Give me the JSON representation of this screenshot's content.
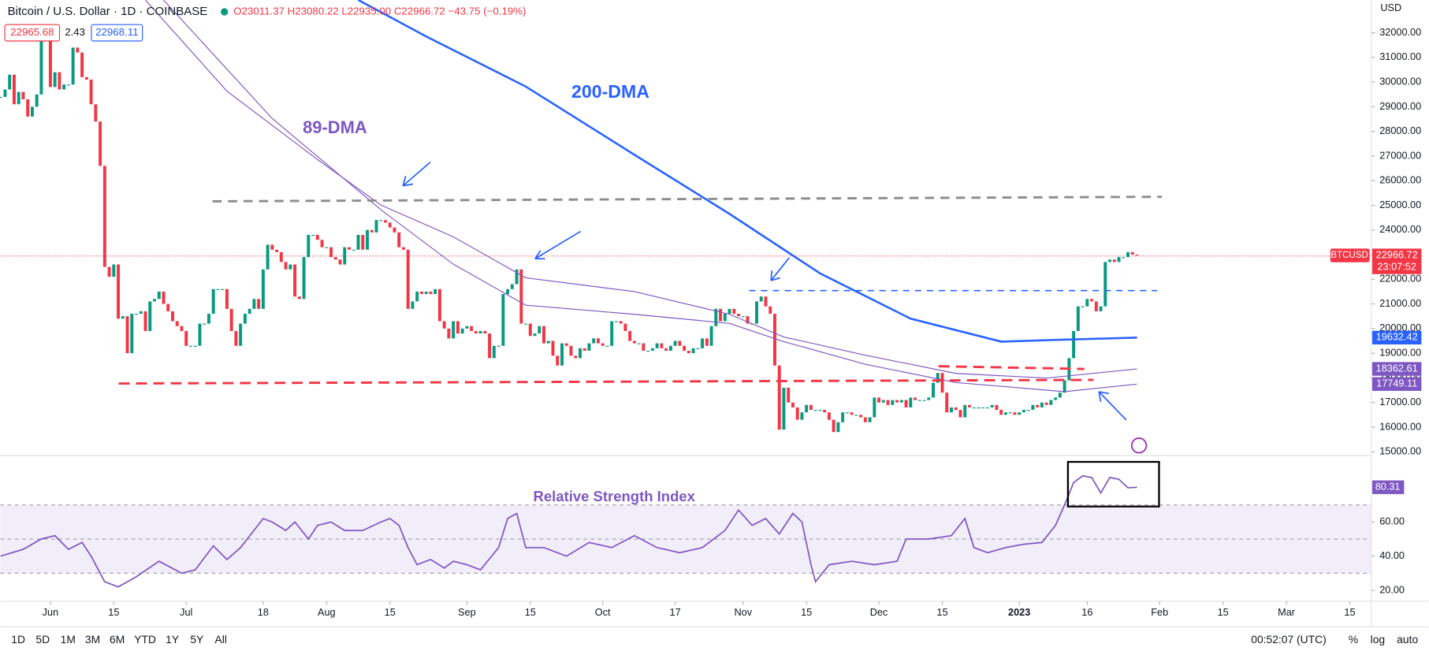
{
  "header": {
    "title": "Bitcoin / U.S. Dollar · 1D · COINBASE",
    "ohlc_text": "O23011.37 H23080.22 L22935.00 C22966.72 −43.75 (−0.19%)",
    "bid": "22965.68",
    "spread": "2.43",
    "ask": "22968.11",
    "currency": "USD"
  },
  "toolbar": {
    "ranges": [
      "1D",
      "5D",
      "1M",
      "3M",
      "6M",
      "YTD",
      "1Y",
      "5Y",
      "All"
    ],
    "time": "00:52:07 (UTC)",
    "options": [
      "%",
      "log",
      "auto"
    ]
  },
  "chart_data": [
    {
      "type": "candlestick",
      "symbol": "BTCUSD",
      "countdown": "23:07:52",
      "up_color": "#089981",
      "down_color": "#f23645",
      "annotations": [
        "200-DMA",
        "89-DMA"
      ],
      "ylim": [
        14850,
        33330
      ],
      "yticks": [
        {
          "value": 15000,
          "label": "15000.00"
        },
        {
          "value": 16000,
          "label": "16000.00"
        },
        {
          "value": 17000,
          "label": "17000.00"
        },
        {
          "value": 18000,
          "label": "18000.00"
        },
        {
          "value": 19000,
          "label": "19000.00"
        },
        {
          "value": 20000,
          "label": "20000.00"
        },
        {
          "value": 21000,
          "label": "21000.00"
        },
        {
          "value": 22000,
          "label": "22000.00"
        },
        {
          "value": 23000,
          "label": "23000.00"
        },
        {
          "value": 24000,
          "label": "24000.00"
        },
        {
          "value": 25000,
          "label": "25000.00"
        },
        {
          "value": 26000,
          "label": "26000.00"
        },
        {
          "value": 27000,
          "label": "27000.00"
        },
        {
          "value": 28000,
          "label": "28000.00"
        },
        {
          "value": 29000,
          "label": "29000.00"
        },
        {
          "value": 30000,
          "label": "30000.00"
        },
        {
          "value": 31000,
          "label": "31000.00"
        },
        {
          "value": 32000,
          "label": "32000.00"
        }
      ],
      "xticks": [
        {
          "value": 11,
          "label": "Jun"
        },
        {
          "value": 25,
          "label": "15"
        },
        {
          "value": 41,
          "label": "Jul"
        },
        {
          "value": 58,
          "label": "18"
        },
        {
          "value": 72,
          "label": "Aug"
        },
        {
          "value": 86,
          "label": "15"
        },
        {
          "value": 103,
          "label": "Sep"
        },
        {
          "value": 117,
          "label": "15"
        },
        {
          "value": 133,
          "label": "Oct"
        },
        {
          "value": 149,
          "label": "17"
        },
        {
          "value": 164,
          "label": "Nov"
        },
        {
          "value": 178,
          "label": "15"
        },
        {
          "value": 194,
          "label": "Dec"
        },
        {
          "value": 208,
          "label": "15"
        },
        {
          "value": 225,
          "label": "2023"
        },
        {
          "value": 240,
          "label": "16"
        },
        {
          "value": 256,
          "label": "Feb"
        },
        {
          "value": 270,
          "label": "15"
        },
        {
          "value": 284,
          "label": "Mar"
        },
        {
          "value": 298,
          "label": "15"
        }
      ],
      "close": [
        29400,
        29700,
        30300,
        29100,
        29600,
        29300,
        28600,
        29000,
        29500,
        31700,
        31800,
        29800,
        30400,
        29700,
        29900,
        29900,
        31400,
        31200,
        30200,
        30100,
        29100,
        28400,
        26600,
        22500,
        22100,
        22600,
        20400,
        20500,
        19000,
        20600,
        20600,
        20700,
        19900,
        21100,
        21200,
        21500,
        21000,
        20700,
        20300,
        20100,
        19900,
        19300,
        19300,
        19300,
        20200,
        20200,
        20600,
        21600,
        21600,
        21600,
        20800,
        19900,
        19300,
        20200,
        20600,
        20800,
        21200,
        20800,
        22400,
        23400,
        23200,
        23100,
        22700,
        22400,
        22600,
        21300,
        21200,
        22900,
        23800,
        23800,
        23600,
        23300,
        23300,
        22900,
        22800,
        22600,
        23300,
        23200,
        23200,
        23800,
        23200,
        24000,
        23900,
        24400,
        24400,
        24300,
        24100,
        23900,
        23300,
        23200,
        20800,
        21100,
        21500,
        21400,
        21500,
        21400,
        21600,
        20300,
        20000,
        19600,
        20300,
        19800,
        20000,
        20100,
        19900,
        19800,
        19900,
        19800,
        18800,
        19300,
        19300,
        21400,
        21600,
        21800,
        22400,
        20200,
        20200,
        19700,
        19800,
        20100,
        19400,
        19500,
        18900,
        18500,
        19400,
        19300,
        18900,
        18800,
        19200,
        19100,
        19400,
        19600,
        19400,
        19300,
        19300,
        20300,
        20300,
        20200,
        19900,
        19500,
        19400,
        19400,
        19100,
        19100,
        19200,
        19400,
        19200,
        19100,
        19300,
        19500,
        19300,
        19100,
        19000,
        19200,
        19200,
        19600,
        19300,
        20100,
        20800,
        20300,
        20600,
        20800,
        20600,
        20500,
        20500,
        20200,
        20200,
        21100,
        21300,
        20900,
        20600,
        18500,
        15900,
        17600,
        17000,
        16800,
        16300,
        16600,
        16900,
        16700,
        16700,
        16700,
        16600,
        16300,
        15800,
        16200,
        16600,
        16600,
        16500,
        16500,
        16400,
        16200,
        16400,
        17200,
        17000,
        17100,
        16900,
        17100,
        17000,
        17100,
        16800,
        17200,
        17100,
        17100,
        17100,
        17200,
        17800,
        18200,
        17400,
        16600,
        16800,
        16700,
        16400,
        16900,
        16800,
        16800,
        16800,
        16800,
        16800,
        16900,
        16700,
        16500,
        16600,
        16600,
        16500,
        16600,
        16700,
        16700,
        16900,
        16800,
        17000,
        16900,
        17100,
        17200,
        17400,
        17900,
        18800,
        19900,
        20900,
        20900,
        21200,
        21100,
        20700,
        20900,
        22700,
        22800,
        22700,
        22900,
        22900,
        23100,
        23000,
        22966.72
      ],
      "series": [
        {
          "name": "200-DMA",
          "color": "#2962ff",
          "x": [
            79,
            94,
            116,
            140,
            161,
            181,
            201,
            221,
            233,
            251
          ],
          "values": [
            33330,
            31850,
            29820,
            27050,
            24650,
            22240,
            20400,
            19470,
            19540,
            19632.42
          ]
        },
        {
          "name": "89-DMA",
          "color": "#7e57c2",
          "x": [
            32,
            50,
            70,
            84,
            100,
            116,
            140,
            161,
            173,
            191,
            211,
            231,
            251
          ],
          "values": [
            33330,
            29630,
            26860,
            25010,
            23720,
            22060,
            21500,
            20580,
            19660,
            18920,
            18180,
            17990,
            18362.61
          ]
        },
        {
          "color": "#7e57c2",
          "x": [
            36,
            60,
            84,
            100,
            116,
            140,
            161,
            173,
            191,
            211,
            235,
            251
          ],
          "values": [
            33330,
            28520,
            24820,
            22610,
            20950,
            20580,
            20210,
            19470,
            18550,
            17810,
            17440,
            17749.11
          ]
        }
      ]
    },
    {
      "type": "line",
      "title": "Relative Strength Index",
      "color": "#7e57c2",
      "ylim": [
        13.6,
        98.9
      ],
      "yticks": [
        {
          "value": 20,
          "label": "20.00"
        },
        {
          "value": 40,
          "label": "40.00"
        },
        {
          "value": 60,
          "label": "60.00"
        }
      ],
      "levels": [
        70,
        50,
        30
      ],
      "x": [
        0,
        5,
        9,
        12,
        15,
        18,
        20,
        23,
        26,
        28,
        30,
        35,
        40,
        43,
        47,
        50,
        53,
        58,
        60,
        63,
        65,
        68,
        70,
        73,
        76,
        80,
        84,
        86,
        88,
        90,
        92,
        95,
        98,
        100,
        103,
        106,
        110,
        112,
        114,
        116,
        120,
        125,
        130,
        135,
        140,
        145,
        150,
        155,
        160,
        163,
        166,
        169,
        172,
        175,
        177,
        179,
        180,
        183,
        188,
        193,
        198,
        200,
        205,
        210,
        213,
        215,
        218,
        222,
        226,
        230,
        233,
        235,
        237,
        239,
        241,
        243,
        245,
        247,
        249,
        251
      ],
      "values": [
        40,
        44,
        50,
        52,
        44,
        48,
        40,
        25,
        22,
        25,
        28,
        37,
        30,
        32,
        46,
        38,
        45,
        62,
        60,
        55,
        60,
        50,
        58,
        60,
        55,
        55,
        60,
        62,
        58,
        45,
        35,
        38,
        33,
        37,
        35,
        32,
        45,
        62,
        65,
        45,
        45,
        40,
        48,
        45,
        52,
        45,
        42,
        45,
        55,
        67,
        58,
        62,
        53,
        65,
        60,
        35,
        25,
        35,
        37,
        35,
        37,
        50,
        50,
        52,
        62,
        45,
        42,
        45,
        47,
        48,
        58,
        70,
        83,
        87,
        86,
        77,
        86,
        85,
        80,
        80.31
      ]
    }
  ]
}
